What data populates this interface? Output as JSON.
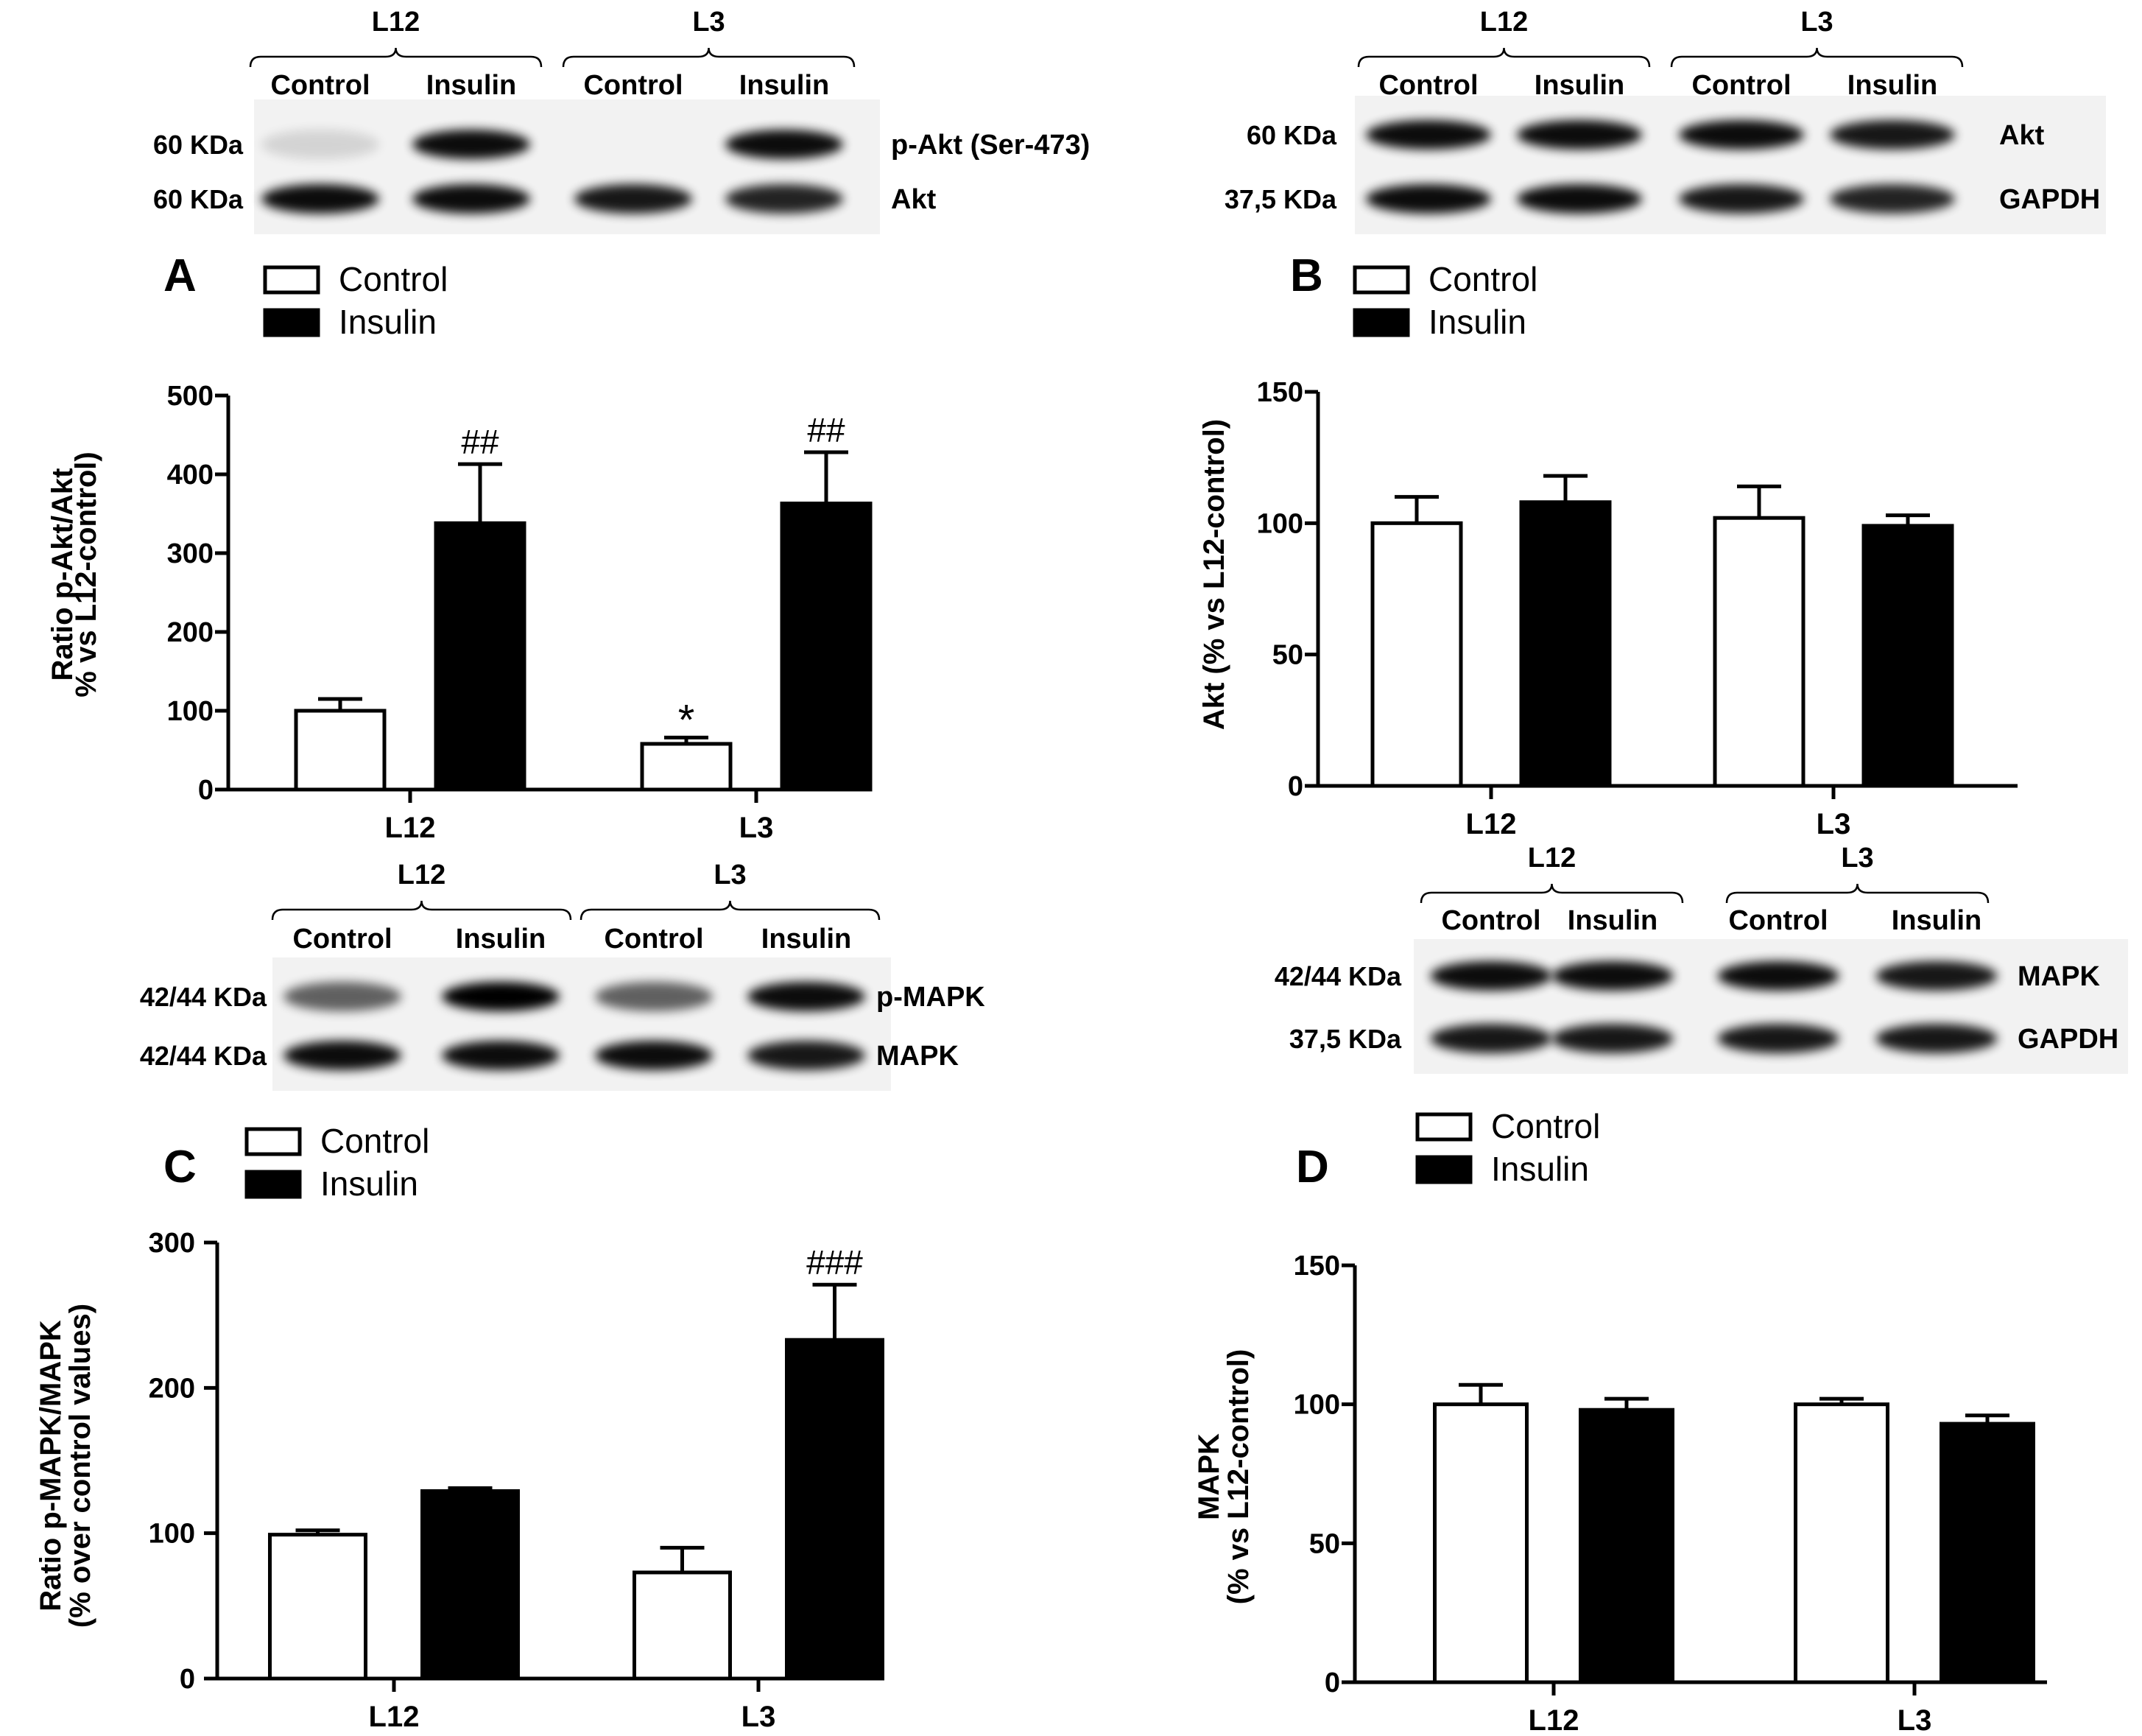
{
  "panels": [
    {
      "id": "A",
      "letter": "A",
      "legend": [
        "Control",
        "Insulin"
      ],
      "blot": {
        "groups": [
          "L12",
          "L3"
        ],
        "lanes": [
          "Control",
          "Insulin",
          "Control",
          "Insulin"
        ],
        "rows": [
          {
            "kda": "60 KDa",
            "protein": "p-Akt (Ser-473)",
            "intensity": [
              0.12,
              0.95,
              0.0,
              0.95
            ]
          },
          {
            "kda": "60 KDa",
            "protein": "Akt",
            "intensity": [
              0.95,
              0.95,
              0.9,
              0.85
            ]
          }
        ]
      },
      "chart_data": {
        "type": "bar",
        "categories": [
          "L12",
          "L3"
        ],
        "series": [
          {
            "name": "Control",
            "values": [
              100,
              58
            ],
            "errors": [
              15,
              8
            ],
            "annotations": [
              "",
              "*"
            ]
          },
          {
            "name": "Insulin",
            "values": [
              338,
              363
            ],
            "errors": [
              75,
              65
            ],
            "annotations": [
              "##",
              "##"
            ]
          }
        ],
        "ylabel": [
          "Ratio p-Akt/Akt",
          "% vs L12-control)"
        ],
        "ylim": [
          0,
          500
        ],
        "yticks": [
          0,
          100,
          200,
          300,
          400,
          500
        ]
      }
    },
    {
      "id": "B",
      "letter": "B",
      "legend": [
        "Control",
        "Insulin"
      ],
      "blot": {
        "groups": [
          "L12",
          "L3"
        ],
        "lanes": [
          "Control",
          "Insulin",
          "Control",
          "Insulin"
        ],
        "rows": [
          {
            "kda": "60 KDa",
            "protein": "Akt",
            "intensity": [
              0.95,
              0.95,
              0.95,
              0.9
            ]
          },
          {
            "kda": "37,5 KDa",
            "protein": "GAPDH",
            "intensity": [
              0.95,
              0.95,
              0.9,
              0.85
            ]
          }
        ]
      },
      "chart_data": {
        "type": "bar",
        "categories": [
          "L12",
          "L3"
        ],
        "series": [
          {
            "name": "Control",
            "values": [
              100,
              102
            ],
            "errors": [
              10,
              12
            ],
            "annotations": [
              "",
              ""
            ]
          },
          {
            "name": "Insulin",
            "values": [
              108,
              99
            ],
            "errors": [
              10,
              4
            ],
            "annotations": [
              "",
              ""
            ]
          }
        ],
        "ylabel": [
          "Akt (% vs L12-control)"
        ],
        "ylim": [
          0,
          150
        ],
        "yticks": [
          0,
          50,
          100,
          150
        ]
      }
    },
    {
      "id": "C",
      "letter": "C",
      "legend": [
        "Control",
        "Insulin"
      ],
      "blot": {
        "groups": [
          "L12",
          "L3"
        ],
        "lanes": [
          "Control",
          "Insulin",
          "Control",
          "Insulin"
        ],
        "rows": [
          {
            "kda": "42/44 KDa",
            "protein": "p-MAPK",
            "intensity": [
              0.6,
              1.0,
              0.6,
              0.95
            ]
          },
          {
            "kda": "42/44 KDa",
            "protein": "MAPK",
            "intensity": [
              0.95,
              0.95,
              0.95,
              0.9
            ]
          }
        ]
      },
      "chart_data": {
        "type": "bar",
        "categories": [
          "L12",
          "L3"
        ],
        "series": [
          {
            "name": "Control",
            "values": [
              99,
              73
            ],
            "errors": [
              3,
              17
            ],
            "annotations": [
              "",
              ""
            ]
          },
          {
            "name": "Insulin",
            "values": [
              129,
              233
            ],
            "errors": [
              2,
              38
            ],
            "annotations": [
              "",
              "###"
            ]
          }
        ],
        "ylabel": [
          "Ratio p-MAPK/MAPK",
          "(% over control values)"
        ],
        "ylim": [
          0,
          300
        ],
        "yticks": [
          0,
          100,
          200,
          300
        ]
      }
    },
    {
      "id": "D",
      "letter": "D",
      "legend": [
        "Control",
        "Insulin"
      ],
      "blot": {
        "groups": [
          "L12",
          "L3"
        ],
        "lanes": [
          "Control",
          "Insulin",
          "Control",
          "Insulin"
        ],
        "rows": [
          {
            "kda": "42/44 KDa",
            "protein": "MAPK",
            "intensity": [
              0.95,
              0.95,
              0.95,
              0.9
            ]
          },
          {
            "kda": "37,5 KDa",
            "protein": "GAPDH",
            "intensity": [
              0.9,
              0.9,
              0.9,
              0.9
            ]
          }
        ]
      },
      "chart_data": {
        "type": "bar",
        "categories": [
          "L12",
          "L3"
        ],
        "series": [
          {
            "name": "Control",
            "values": [
              100,
              100
            ],
            "errors": [
              7,
              2
            ],
            "annotations": [
              "",
              ""
            ]
          },
          {
            "name": "Insulin",
            "values": [
              98,
              93
            ],
            "errors": [
              4,
              3
            ],
            "annotations": [
              "",
              ""
            ]
          }
        ],
        "ylabel": [
          "MAPK",
          "(% vs L12-control)"
        ],
        "ylim": [
          0,
          150
        ],
        "yticks": [
          0,
          50,
          100,
          150
        ]
      }
    }
  ]
}
